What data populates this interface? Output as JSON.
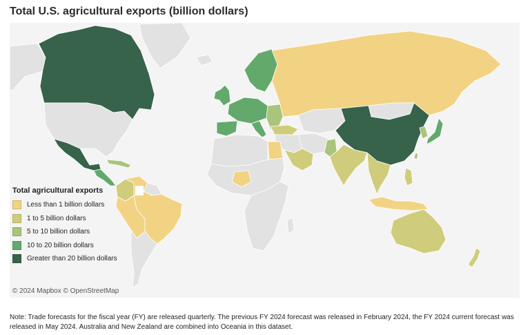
{
  "title": "Total U.S. agricultural exports (billion dollars)",
  "colors": {
    "ocean": "#f4f4f4",
    "no_data": "#e2e2e2",
    "border": "#ffffff"
  },
  "legend": {
    "title": "Total agricultural exports",
    "items": [
      {
        "label": "Less than 1 billion dollars",
        "color": "#f2d383"
      },
      {
        "label": "1 to 5 billion dollars",
        "color": "#cfcd7b"
      },
      {
        "label": "5 to 10 billion dollars",
        "color": "#a9c47b"
      },
      {
        "label": "10 to 20 billion dollars",
        "color": "#63a96b"
      },
      {
        "label": "Greater than 20 billion dollars",
        "color": "#36634a"
      }
    ]
  },
  "regions": [
    {
      "name": "canada",
      "category": 4
    },
    {
      "name": "usa",
      "category": -1
    },
    {
      "name": "alaska",
      "category": -1
    },
    {
      "name": "greenland",
      "category": -1
    },
    {
      "name": "mexico",
      "category": 4
    },
    {
      "name": "central-america",
      "category": 3
    },
    {
      "name": "caribbean",
      "category": 2
    },
    {
      "name": "colombia",
      "category": 1
    },
    {
      "name": "venezuela",
      "category": 0
    },
    {
      "name": "ecuador-peru-bolivia",
      "category": 0
    },
    {
      "name": "brazil",
      "category": 0
    },
    {
      "name": "southern-cone",
      "category": -1
    },
    {
      "name": "guianas",
      "category": -1
    },
    {
      "name": "iceland",
      "category": -1
    },
    {
      "name": "uk-ireland",
      "category": 3
    },
    {
      "name": "scandinavia",
      "category": 3
    },
    {
      "name": "western-europe",
      "category": 3
    },
    {
      "name": "iberia",
      "category": 3
    },
    {
      "name": "italy",
      "category": 3
    },
    {
      "name": "eastern-europe",
      "category": 2
    },
    {
      "name": "turkey",
      "category": 1
    },
    {
      "name": "russia",
      "category": 0
    },
    {
      "name": "central-asia",
      "category": -1
    },
    {
      "name": "north-africa",
      "category": -1
    },
    {
      "name": "egypt",
      "category": 0
    },
    {
      "name": "west-central-africa",
      "category": -1
    },
    {
      "name": "nigeria",
      "category": 0
    },
    {
      "name": "east-southern-africa",
      "category": -1
    },
    {
      "name": "madagascar",
      "category": -1
    },
    {
      "name": "saudi-arabia",
      "category": 1
    },
    {
      "name": "middle-east",
      "category": -1
    },
    {
      "name": "iran-afghanistan",
      "category": -1
    },
    {
      "name": "pakistan",
      "category": 2
    },
    {
      "name": "india",
      "category": 1
    },
    {
      "name": "china",
      "category": 4
    },
    {
      "name": "mongolia",
      "category": -1
    },
    {
      "name": "korea",
      "category": 2
    },
    {
      "name": "japan",
      "category": 3
    },
    {
      "name": "taiwan",
      "category": 2
    },
    {
      "name": "southeast-asia",
      "category": 1
    },
    {
      "name": "philippines",
      "category": 1
    },
    {
      "name": "indonesia",
      "category": 0
    },
    {
      "name": "australia",
      "category": 1
    },
    {
      "name": "new-zealand",
      "category": 1
    }
  ],
  "attribution": "© 2024 Mapbox  © OpenStreetMap",
  "note": "Note: Trade forecasts for the fiscal year (FY) are released quarterly. The previous FY 2024 forecast was released in February 2024, the FY 2024 current forecast was released in May 2024. Australia and New Zealand are combined into Oceania in this dataset."
}
